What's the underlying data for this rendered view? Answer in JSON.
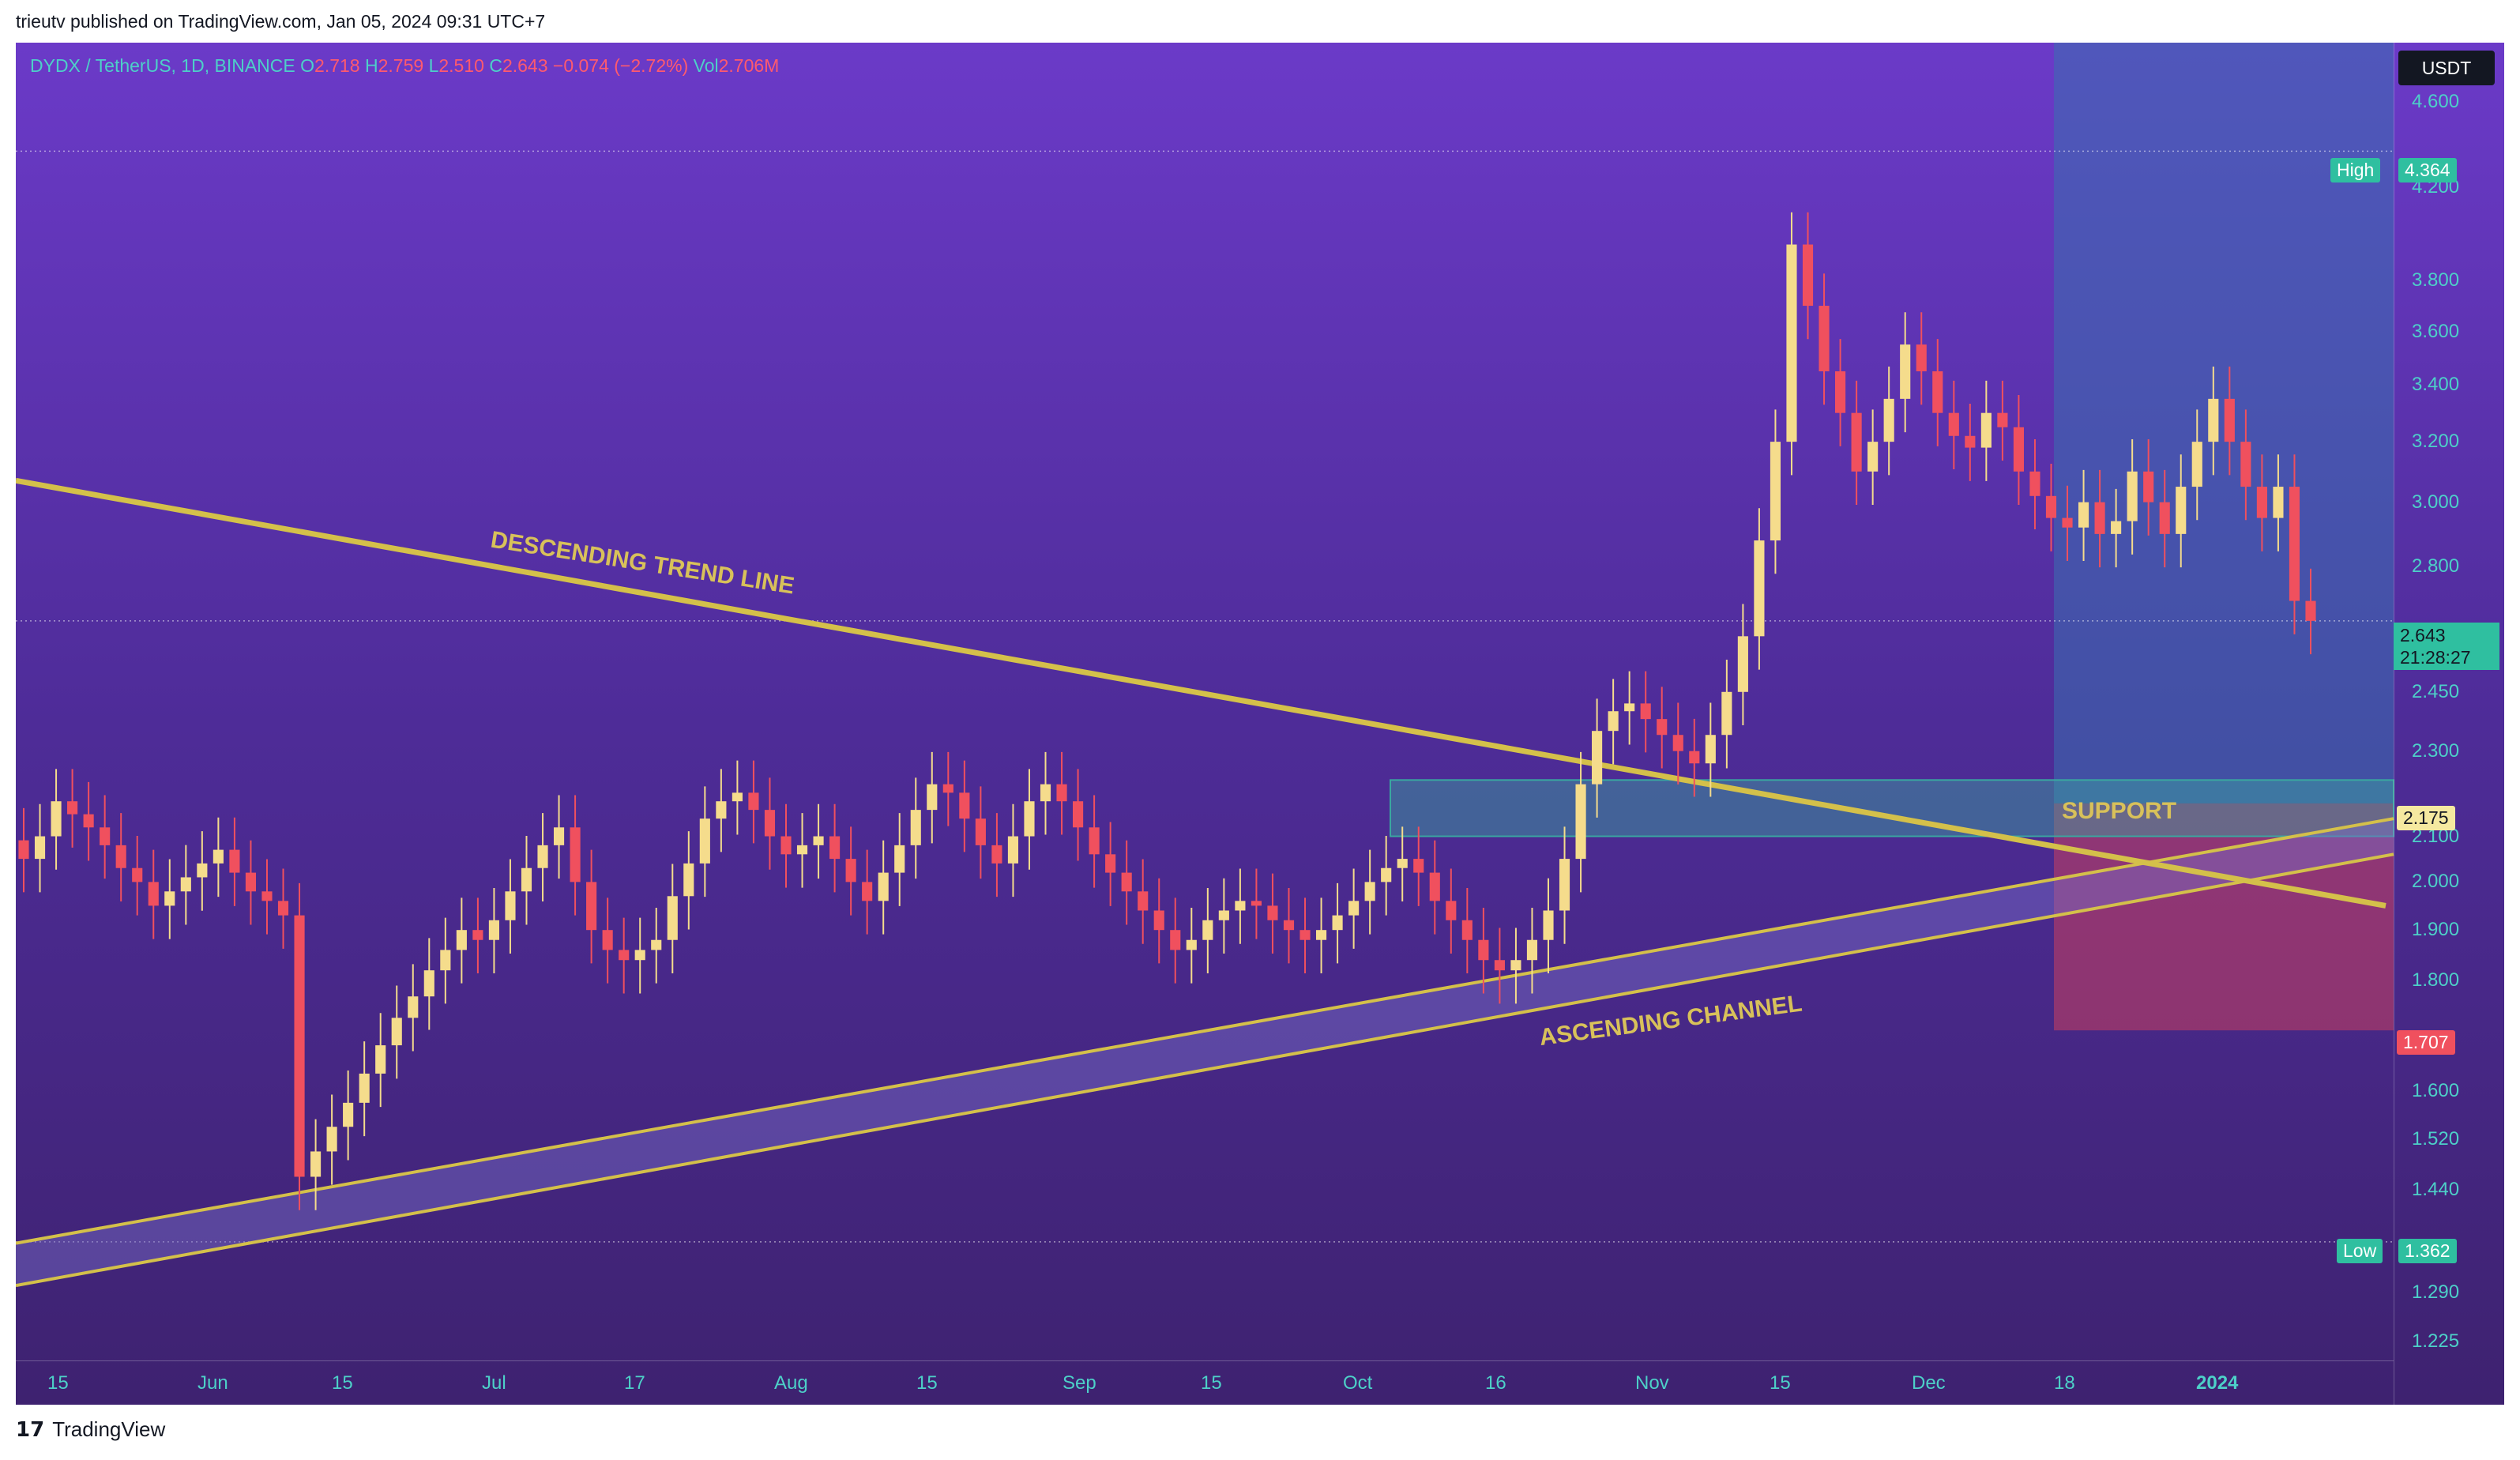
{
  "header": {
    "publisher_line": "trieutv published on TradingView.com, Jan 05, 2024 09:31 UTC+7"
  },
  "footer": {
    "brand": "TradingView"
  },
  "colors": {
    "bull": "#f5dc8c",
    "bear": "#f0505e",
    "trendline": "#d4c04a",
    "accent_teal": "#4dd0c8",
    "support_box": "#3aa7a0",
    "stop_box": "#c8405e",
    "target_box": "#3a6fb0"
  },
  "chart_data": {
    "type": "candlestick",
    "symbol_info": {
      "symbol": "DYDX / TetherUS, 1D, BINANCE",
      "o_label": "O",
      "o": "2.718",
      "h_label": "H",
      "h": "2.759",
      "l_label": "L",
      "l": "2.510",
      "c_label": "C",
      "c": "2.643",
      "change": "−0.074 (−2.72%)",
      "vol_label": "Vol",
      "vol": "2.706M"
    },
    "unit": "USDT",
    "y_scale": "log",
    "ylim": [
      1.2,
      4.9
    ],
    "y_ticks": [
      "4.600",
      "4.200",
      "3.800",
      "3.600",
      "3.400",
      "3.200",
      "3.000",
      "2.800",
      "2.450",
      "2.300",
      "2.100",
      "2.000",
      "1.900",
      "1.800",
      "1.600",
      "1.520",
      "1.440",
      "1.290",
      "1.225"
    ],
    "x_ticks": [
      "15",
      "Jun",
      "15",
      "Jul",
      "17",
      "Aug",
      "15",
      "Sep",
      "15",
      "Oct",
      "16",
      "Nov",
      "15",
      "Dec",
      "18",
      "2024"
    ],
    "price_labels": {
      "high_label": "High",
      "high": "4.364",
      "low_label": "Low",
      "low": "1.362",
      "current": "2.643",
      "countdown": "21:28:27",
      "support_level": "2.175",
      "stop_level": "1.707"
    },
    "annotations": {
      "descending": "DESCENDING TREND LINE",
      "ascending": "ASCENDING CHANNEL",
      "support": "SUPPORT"
    },
    "closes": [
      2.05,
      2.1,
      2.18,
      2.15,
      2.12,
      2.08,
      2.03,
      2.0,
      1.95,
      1.98,
      2.01,
      2.04,
      2.07,
      2.02,
      1.98,
      1.96,
      1.93,
      1.46,
      1.5,
      1.54,
      1.58,
      1.63,
      1.68,
      1.73,
      1.77,
      1.82,
      1.86,
      1.9,
      1.88,
      1.92,
      1.98,
      2.03,
      2.08,
      2.12,
      2.0,
      1.9,
      1.86,
      1.84,
      1.86,
      1.88,
      1.97,
      2.04,
      2.14,
      2.18,
      2.2,
      2.16,
      2.1,
      2.06,
      2.08,
      2.1,
      2.05,
      2.0,
      1.96,
      2.02,
      2.08,
      2.16,
      2.22,
      2.2,
      2.14,
      2.08,
      2.04,
      2.1,
      2.18,
      2.22,
      2.18,
      2.12,
      2.06,
      2.02,
      1.98,
      1.94,
      1.9,
      1.86,
      1.88,
      1.92,
      1.94,
      1.96,
      1.95,
      1.92,
      1.9,
      1.88,
      1.9,
      1.93,
      1.96,
      2.0,
      2.03,
      2.05,
      2.02,
      1.96,
      1.92,
      1.88,
      1.84,
      1.82,
      1.84,
      1.88,
      1.94,
      2.05,
      2.22,
      2.35,
      2.4,
      2.42,
      2.38,
      2.34,
      2.3,
      2.27,
      2.34,
      2.45,
      2.6,
      2.88,
      3.2,
      3.95,
      3.7,
      3.45,
      3.3,
      3.1,
      3.2,
      3.35,
      3.55,
      3.45,
      3.3,
      3.22,
      3.18,
      3.3,
      3.25,
      3.1,
      3.02,
      2.95,
      2.92,
      3.0,
      2.9,
      2.94,
      3.1,
      3.0,
      2.9,
      3.05,
      3.2,
      3.35,
      3.2,
      3.05,
      2.95,
      3.05,
      2.7,
      2.643
    ]
  }
}
